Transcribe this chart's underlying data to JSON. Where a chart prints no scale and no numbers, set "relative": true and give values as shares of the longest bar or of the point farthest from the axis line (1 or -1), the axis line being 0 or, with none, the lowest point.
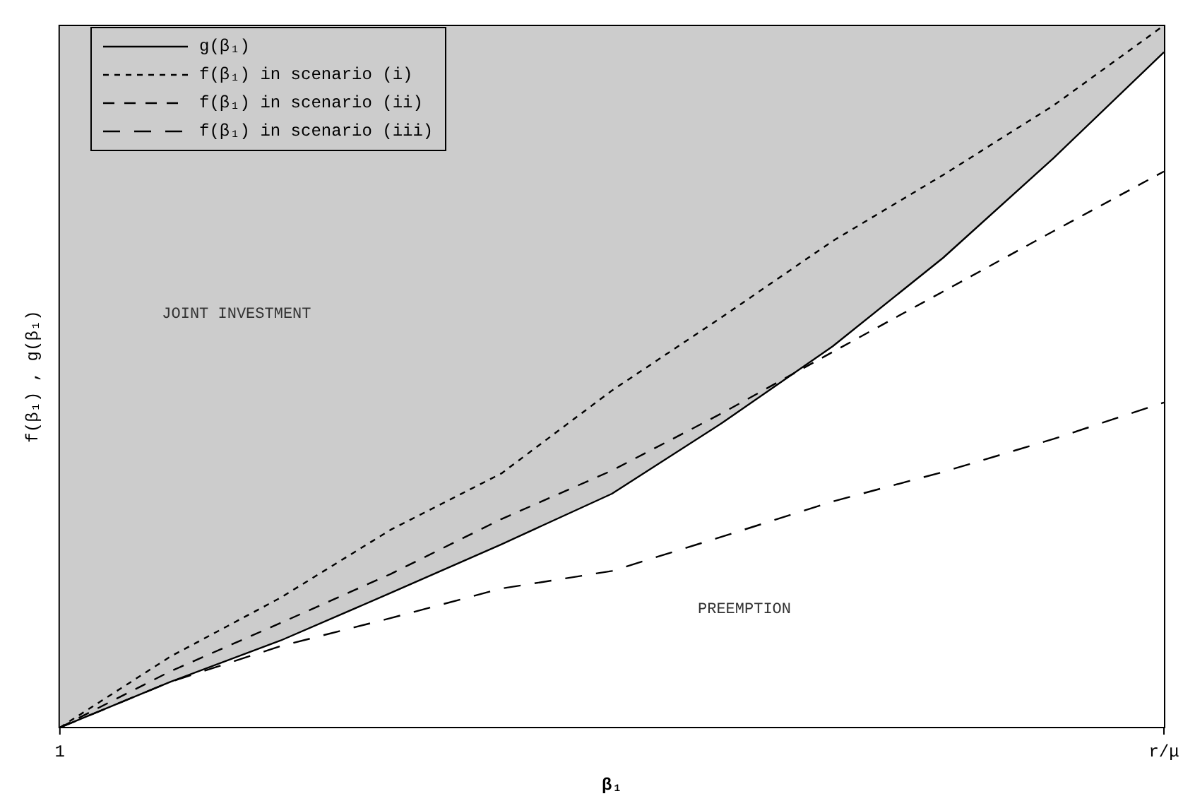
{
  "chart_data": {
    "type": "line",
    "relative": true,
    "xlabel": "β₁",
    "ylabel": "f(β₁) , g(β₁)",
    "categories": [
      "1",
      null,
      null,
      null,
      null,
      null,
      null,
      null,
      null,
      null,
      "r/μ"
    ],
    "series": [
      {
        "name": "g(β₁)",
        "color": "#000000",
        "line_style": "solid",
        "values": [
          0,
          0.065,
          0.124,
          0.192,
          0.261,
          0.333,
          0.434,
          0.543,
          0.669,
          0.811,
          0.962
        ],
        "lower": [
          0,
          0.065,
          0.124,
          0.192,
          0.261,
          0.333,
          0.434,
          0.543,
          0.669,
          0.811,
          0.962
        ],
        "upper": [
          1,
          1,
          1,
          1,
          1,
          1,
          1,
          1,
          1,
          1,
          1
        ]
      },
      {
        "name": "f(β₁) in scenario (i)",
        "color": "#000000",
        "line_style": "dashed",
        "values": [
          0,
          0.101,
          0.185,
          0.282,
          0.362,
          0.48,
          0.585,
          0.693,
          0.787,
          0.886,
          1
        ]
      },
      {
        "name": "f(β₁) in scenario (ii)",
        "color": "#000000",
        "line_style": "dashed",
        "values": [
          0,
          0.08,
          0.149,
          0.219,
          0.297,
          0.366,
          0.448,
          0.535,
          0.621,
          0.707,
          0.792
        ]
      },
      {
        "name": "f(β₁) in scenario (iii)",
        "color": "#000000",
        "line_style": "dashed",
        "values": [
          0,
          0.065,
          0.116,
          0.156,
          0.198,
          0.223,
          0.272,
          0.322,
          0.364,
          0.411,
          0.463
        ]
      }
    ],
    "annotations": [
      "JOINT INVESTMENT",
      "PREEMPTION"
    ],
    "legend": "top left",
    "marker": "none",
    "grid": false
  }
}
